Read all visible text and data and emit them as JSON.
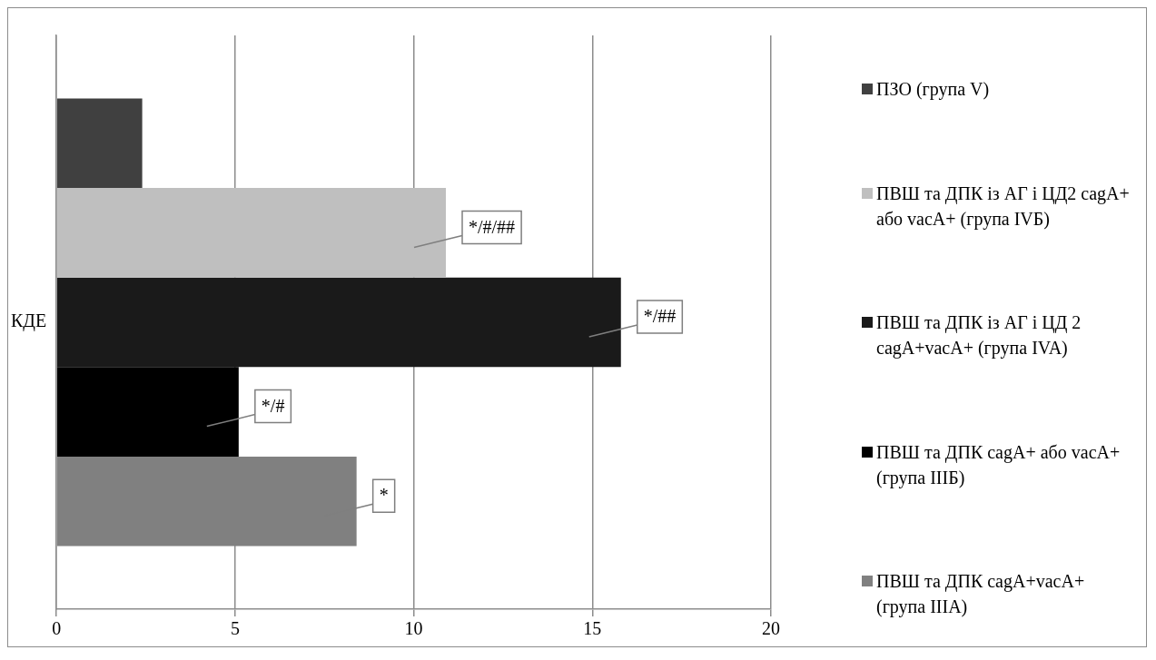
{
  "chart_data": {
    "type": "bar",
    "orientation": "horizontal",
    "categories": [
      "КДЕ"
    ],
    "series": [
      {
        "name": "ПЗО (група V)",
        "color": "#404040",
        "values": [
          2.4
        ]
      },
      {
        "name": "ПВШ та ДПК із АГ і ЦД2 cagA+ або vacA+ (група IVБ)",
        "color": "#bfbfbf",
        "values": [
          10.9
        ],
        "value_labels": [
          "*/#/##"
        ]
      },
      {
        "name": "ПВШ та ДПК із АГ і ЦД 2 cagA+vacA+ (група IVA)",
        "color": "#1a1a1a",
        "values": [
          15.8
        ],
        "value_labels": [
          "*/##"
        ]
      },
      {
        "name": "ПВШ та ДПК cagA+ або vacA+ (група IIIБ)",
        "color": "#000000",
        "values": [
          5.1
        ],
        "value_labels": [
          "*/#"
        ]
      },
      {
        "name": "ПВШ та ДПК cagA+vacA+ (група IIIA)",
        "color": "#808080",
        "values": [
          8.4
        ],
        "value_labels": [
          "*"
        ]
      }
    ],
    "xlim": [
      0,
      20
    ],
    "xticks": [
      0,
      5,
      10,
      15,
      20
    ],
    "grid": "x",
    "legend": "right"
  }
}
